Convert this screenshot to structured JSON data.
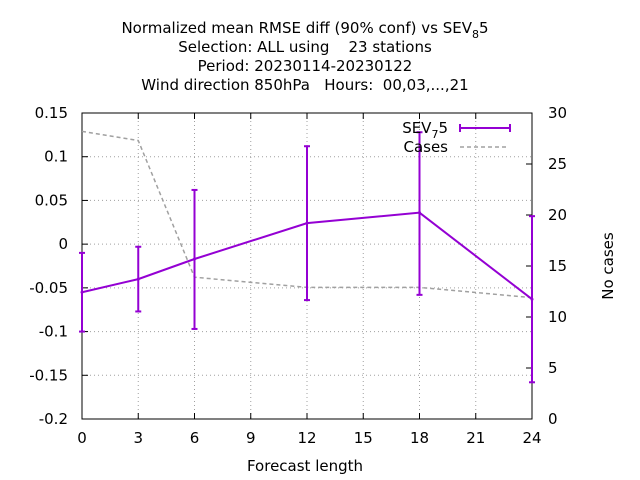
{
  "chart_data": {
    "type": "line",
    "title_lines": [
      "Normalized mean RMSE diff (90% conf) vs SEV",
      "Selection: ALL using    23 stations",
      "Period: 20230114-20230122",
      "Wind direction 850hPa   Hours:  00,03,...,21"
    ],
    "title_first_sub": "8",
    "title_first_tail": "5",
    "xlabel": "Forecast length",
    "ylabel": "",
    "y2label": "No cases",
    "xlim": [
      0,
      24
    ],
    "ylim": [
      -0.2,
      0.15
    ],
    "y2lim": [
      0,
      30
    ],
    "xticks": [
      0,
      3,
      6,
      9,
      12,
      15,
      18,
      21,
      24
    ],
    "yticks": [
      -0.2,
      -0.15,
      -0.1,
      -0.05,
      0,
      0.05,
      0.1,
      0.15
    ],
    "y2ticks": [
      0,
      5,
      10,
      15,
      20,
      25,
      30
    ],
    "grid": true,
    "legend_position": "top-right",
    "series": [
      {
        "name": "SEV",
        "name_sub": "7",
        "name_tail": "5",
        "color": "#9400d3",
        "axis": "left",
        "style": "line-errorbars",
        "x": [
          0,
          3,
          6,
          12,
          18,
          24
        ],
        "y": [
          -0.055,
          -0.04,
          -0.017,
          0.024,
          0.036,
          -0.063
        ],
        "err_low": [
          -0.1,
          -0.077,
          -0.097,
          -0.064,
          -0.058,
          -0.158
        ],
        "err_high": [
          -0.01,
          -0.003,
          0.062,
          0.112,
          0.128,
          0.032
        ]
      },
      {
        "name": "Cases",
        "color": "#a0a0a0",
        "axis": "right",
        "style": "dashed",
        "x": [
          0,
          3,
          6,
          9,
          12,
          15,
          18,
          21,
          24
        ],
        "y": [
          28.2,
          27.3,
          13.9,
          13.4,
          12.9,
          12.9,
          12.9,
          12.4,
          11.9
        ]
      }
    ]
  }
}
